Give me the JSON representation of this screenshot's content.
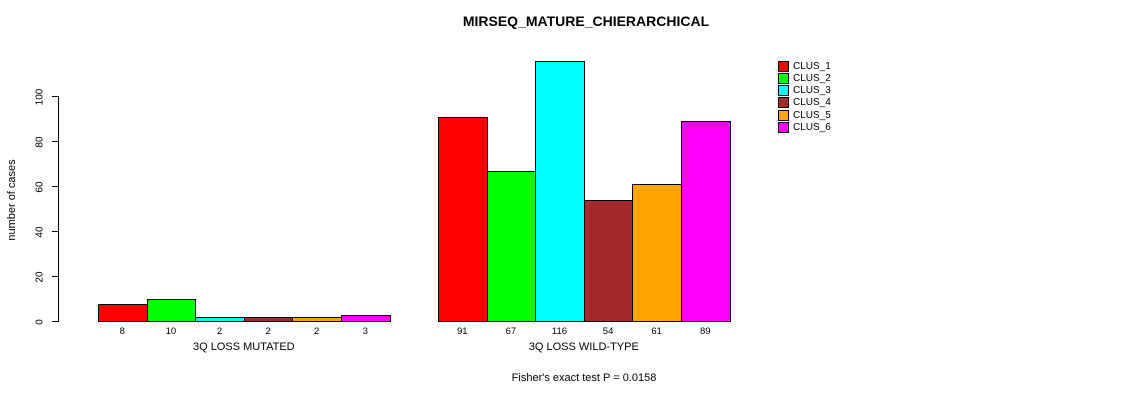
{
  "chart_data": {
    "type": "bar",
    "title": "MIRSEQ_MATURE_CHIERARCHICAL",
    "ylabel": "number of cases",
    "xlabel": "",
    "subtitle": "Fisher's exact test P = 0.0158",
    "categories": [
      "3Q LOSS MUTATED",
      "3Q LOSS WILD-TYPE"
    ],
    "series": [
      {
        "name": "CLUS_1",
        "color": "#FF0000",
        "values": [
          8,
          91
        ]
      },
      {
        "name": "CLUS_2",
        "color": "#00FF00",
        "values": [
          10,
          67
        ]
      },
      {
        "name": "CLUS_3",
        "color": "#00FFFF",
        "values": [
          2,
          116
        ]
      },
      {
        "name": "CLUS_4",
        "color": "#A52A2A",
        "values": [
          2,
          54
        ]
      },
      {
        "name": "CLUS_5",
        "color": "#FFA500",
        "values": [
          2,
          61
        ]
      },
      {
        "name": "CLUS_6",
        "color": "#FF00FF",
        "values": [
          3,
          89
        ]
      }
    ],
    "yticks": [
      0,
      20,
      40,
      60,
      80,
      100
    ],
    "ylim": [
      0,
      116
    ],
    "grid": false,
    "legend_position": "right",
    "bar_value_labels_shown": true
  }
}
